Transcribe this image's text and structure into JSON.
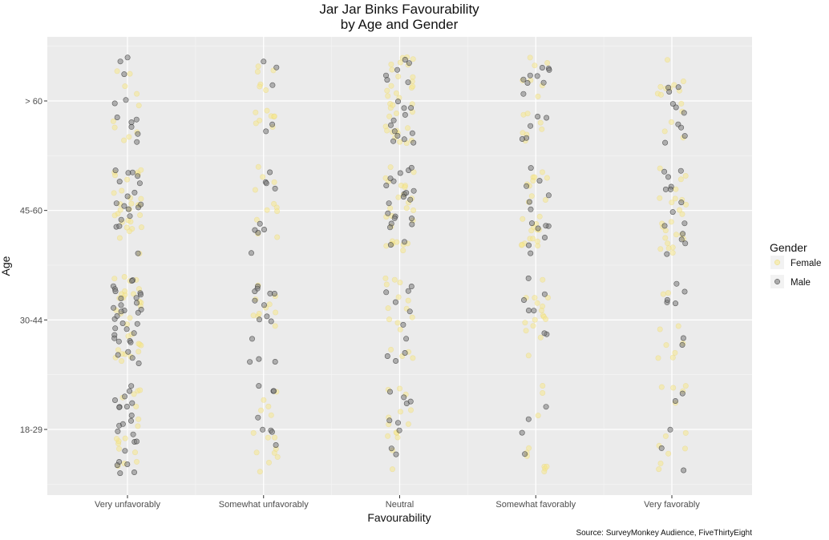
{
  "chart_data": {
    "type": "scatter",
    "style": "jitter",
    "title": "Jar Jar Binks Favourability",
    "subtitle": "by Age and Gender",
    "xlabel": "Favourability",
    "ylabel": "Age",
    "categories": [
      "Very unfavorably",
      "Somewhat unfavorably",
      "Neutral",
      "Somewhat favorably",
      "Very favorably"
    ],
    "age_groups": [
      "18-29",
      "30-44",
      "45-60",
      "> 60"
    ],
    "legend": {
      "title": "Gender",
      "position": "right",
      "entries": [
        "Female",
        "Male"
      ]
    },
    "colors": {
      "Female": "#F6E78E",
      "Male": "#7A7A7A",
      "panel": "#EBEBEB",
      "grid": "#FFFFFF"
    },
    "jitter": {
      "x_width": 0.4,
      "y_height": 0.4
    },
    "counts": [
      {
        "category": "Very unfavorably",
        "age": "18-29",
        "female": 16,
        "male": 22
      },
      {
        "category": "Very unfavorably",
        "age": "30-44",
        "female": 30,
        "male": 32
      },
      {
        "category": "Very unfavorably",
        "age": "45-60",
        "female": 28,
        "male": 18
      },
      {
        "category": "Very unfavorably",
        "age": "> 60",
        "female": 10,
        "male": 11
      },
      {
        "category": "Somewhat unfavorably",
        "age": "18-29",
        "female": 14,
        "male": 8
      },
      {
        "category": "Somewhat unfavorably",
        "age": "30-44",
        "female": 10,
        "male": 14
      },
      {
        "category": "Somewhat unfavorably",
        "age": "45-60",
        "female": 11,
        "male": 9
      },
      {
        "category": "Somewhat unfavorably",
        "age": "> 60",
        "female": 14,
        "male": 5
      },
      {
        "category": "Neutral",
        "age": "18-29",
        "female": 14,
        "male": 9
      },
      {
        "category": "Neutral",
        "age": "30-44",
        "female": 16,
        "male": 10
      },
      {
        "category": "Neutral",
        "age": "45-60",
        "female": 26,
        "male": 21
      },
      {
        "category": "Neutral",
        "age": "> 60",
        "female": 34,
        "male": 18
      },
      {
        "category": "Somewhat favorably",
        "age": "18-29",
        "female": 10,
        "male": 4
      },
      {
        "category": "Somewhat favorably",
        "age": "30-44",
        "female": 16,
        "male": 7
      },
      {
        "category": "Somewhat favorably",
        "age": "45-60",
        "female": 24,
        "male": 13
      },
      {
        "category": "Somewhat favorably",
        "age": "> 60",
        "female": 14,
        "male": 14
      },
      {
        "category": "Very favorably",
        "age": "18-29",
        "female": 12,
        "male": 5
      },
      {
        "category": "Very favorably",
        "age": "30-44",
        "female": 9,
        "male": 7
      },
      {
        "category": "Very favorably",
        "age": "45-60",
        "female": 24,
        "male": 14
      },
      {
        "category": "Very favorably",
        "age": "> 60",
        "female": 14,
        "male": 10
      }
    ]
  },
  "source_note": "Source: SurveyMonkey Audience, FiveThirtyEight"
}
